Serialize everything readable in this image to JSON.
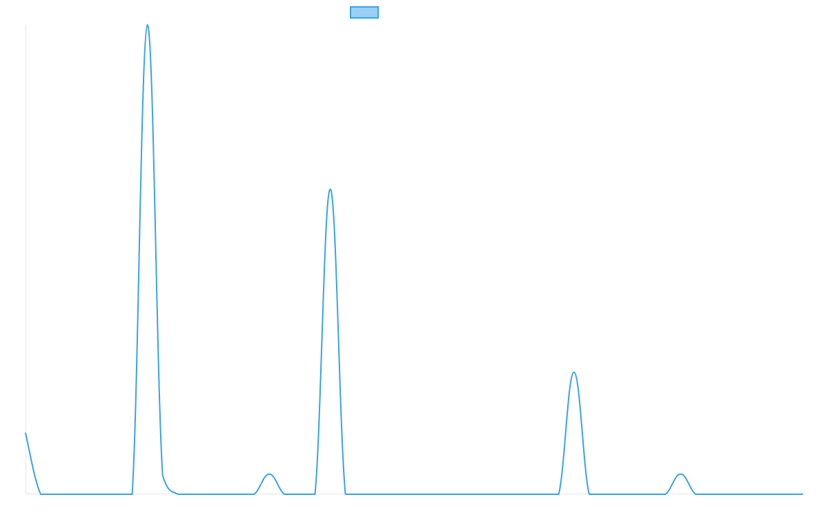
{
  "chart_data": {
    "type": "line",
    "title": "",
    "xlabel": "",
    "ylabel": "",
    "legend": {
      "position": "top",
      "entries": [
        {
          "label": "",
          "color": "#36a2eb",
          "fill": "#9ad0f5"
        }
      ]
    },
    "grid": false,
    "xlim": [
      0,
      51
    ],
    "ylim": [
      0,
      100
    ],
    "x": [
      0,
      1,
      2,
      3,
      4,
      5,
      6,
      7,
      8,
      9,
      10,
      11,
      12,
      13,
      14,
      15,
      16,
      17,
      18,
      19,
      20,
      21,
      22,
      23,
      24,
      25,
      26,
      27,
      28,
      29,
      30,
      31,
      32,
      33,
      34,
      35,
      36,
      37,
      38,
      39,
      40,
      41,
      42,
      43,
      44,
      45,
      46,
      47,
      48,
      49,
      50,
      51
    ],
    "series": [
      {
        "color": "#36a2eb",
        "values": [
          13,
          0,
          0,
          0,
          0,
          0,
          0,
          0,
          100,
          4,
          0,
          0,
          0,
          0,
          0,
          0,
          4.3,
          0,
          0,
          0,
          65,
          0,
          0,
          0,
          0,
          0,
          0,
          0,
          0,
          0,
          0,
          0,
          0,
          0,
          0,
          0,
          26,
          0,
          0,
          0,
          0,
          0,
          0,
          4.3,
          0,
          0,
          0,
          0,
          0,
          0,
          0,
          0
        ]
      }
    ]
  }
}
